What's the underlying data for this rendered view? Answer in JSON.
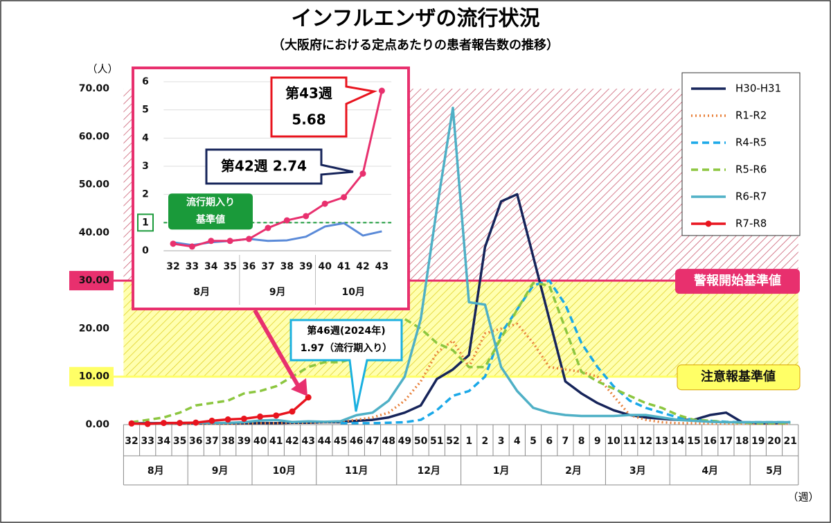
{
  "chart_data": [
    {
      "type": "line",
      "title": "インフルエンザの流行状況",
      "subtitle": "（大阪府における定点あたりの患者報告数の推移）",
      "y_unit": "（人）",
      "x_unit": "（週）",
      "categories": [
        "32",
        "33",
        "34",
        "35",
        "36",
        "37",
        "38",
        "39",
        "40",
        "41",
        "42",
        "43",
        "44",
        "45",
        "46",
        "47",
        "48",
        "49",
        "50",
        "51",
        "52",
        "1",
        "2",
        "3",
        "4",
        "5",
        "6",
        "7",
        "8",
        "9",
        "10",
        "11",
        "12",
        "13",
        "14",
        "15",
        "16",
        "17",
        "18",
        "19",
        "20",
        "21"
      ],
      "months": [
        {
          "label": "8月",
          "span": 4
        },
        {
          "label": "9月",
          "span": 4
        },
        {
          "label": "10月",
          "span": 4
        },
        {
          "label": "11月",
          "span": 5
        },
        {
          "label": "12月",
          "span": 4
        },
        {
          "label": "1月",
          "span": 5
        },
        {
          "label": "2月",
          "span": 4
        },
        {
          "label": "3月",
          "span": 4
        },
        {
          "label": "4月",
          "span": 5
        },
        {
          "label": "5月",
          "span": 3
        }
      ],
      "ylim": [
        0,
        70
      ],
      "yticks": [
        {
          "value": 0,
          "label": "0.00"
        },
        {
          "value": 10,
          "label": "10.00"
        },
        {
          "value": 20,
          "label": "20.00"
        },
        {
          "value": 30,
          "label": "30.00"
        },
        {
          "value": 40,
          "label": "40.00"
        },
        {
          "value": 50,
          "label": "50.00"
        },
        {
          "value": 60,
          "label": "60.00"
        },
        {
          "value": 70,
          "label": "70.00"
        }
      ],
      "thresholds": [
        {
          "label": "警報開始基準値",
          "value": 30,
          "color": "#e8306e"
        },
        {
          "label": "注意報基準値",
          "value": 10,
          "color": "#ffff66"
        }
      ],
      "legend": "upper right",
      "series": [
        {
          "name": "H30-H31",
          "color": "#16245a",
          "style": "solid",
          "values": [
            0.3,
            0.3,
            0.3,
            0.3,
            0.3,
            0.3,
            0.3,
            0.3,
            0.3,
            0.3,
            0.4,
            0.4,
            0.5,
            0.5,
            0.8,
            1.0,
            1.5,
            2.5,
            4.0,
            9.5,
            11.5,
            14.5,
            37,
            46.5,
            48,
            35,
            22,
            9,
            6.5,
            4.5,
            3,
            2,
            1.5,
            1.2,
            1,
            1,
            2,
            2.5,
            0.5,
            0.3,
            0.3,
            0.5
          ]
        },
        {
          "name": "R1-R2",
          "color": "#e8803a",
          "style": "dotted",
          "values": [
            0.2,
            0.2,
            0.2,
            0.2,
            0.2,
            0.2,
            0.2,
            0.3,
            0.3,
            0.3,
            0.4,
            0.4,
            0.5,
            0.6,
            1.0,
            1.5,
            2.5,
            5,
            9,
            15,
            17.5,
            12,
            19,
            20,
            21,
            17,
            12,
            11.5,
            11,
            10,
            6,
            2,
            1,
            0.5,
            0.3,
            0.3,
            0.2,
            0.2,
            0.2,
            0.2,
            0.2,
            0.2
          ]
        },
        {
          "name": "R4-R5",
          "color": "#1aa8e8",
          "style": "dashed",
          "values": [
            null,
            null,
            null,
            null,
            null,
            null,
            null,
            null,
            null,
            null,
            null,
            null,
            null,
            0.3,
            0.3,
            0.3,
            0.4,
            0.5,
            1.0,
            3,
            6,
            7,
            10,
            19,
            24,
            29,
            30,
            25,
            17,
            12,
            8,
            5,
            3.5,
            2.5,
            1.5,
            1,
            0.8,
            0.6,
            0.5,
            0.5,
            0.5,
            0.5
          ]
        },
        {
          "name": "R5-R6",
          "color": "#8cc63f",
          "style": "dashed",
          "values": [
            0.5,
            1,
            1.5,
            2.5,
            4,
            4.5,
            5,
            6.5,
            7,
            8,
            10,
            12,
            13,
            13,
            14,
            17,
            20,
            22,
            20,
            17,
            15.5,
            12,
            12,
            18,
            24,
            29.5,
            29,
            20,
            11,
            9,
            7.5,
            6,
            4.5,
            3.5,
            2,
            1,
            0.8,
            0.5,
            0.4,
            0.3,
            0.3,
            0.3
          ]
        },
        {
          "name": "R6-R7",
          "color": "#4fb0c6",
          "style": "solid",
          "values": [
            0.3,
            0.2,
            0.3,
            0.35,
            0.42,
            0.35,
            0.37,
            0.5,
            0.86,
            0.98,
            0.54,
            0.69,
            0.6,
            0.7,
            1.97,
            2.5,
            5,
            10,
            22,
            45,
            66,
            25.5,
            25,
            12,
            7,
            3.5,
            2.5,
            2,
            1.8,
            1.8,
            1.8,
            2,
            2,
            1.5,
            1,
            0.8,
            0.6,
            0.5,
            0.5,
            0.5,
            0.5,
            0.5
          ]
        },
        {
          "name": "R7-R8",
          "color": "#e8141e",
          "style": "solid",
          "markers": true,
          "values": [
            0.25,
            0.15,
            0.35,
            0.35,
            0.42,
            0.81,
            1.08,
            1.23,
            1.67,
            1.9,
            2.74,
            5.68,
            null,
            null,
            null,
            null,
            null,
            null,
            null,
            null,
            null,
            null,
            null,
            null,
            null,
            null,
            null,
            null,
            null,
            null,
            null,
            null,
            null,
            null,
            null,
            null,
            null,
            null,
            null,
            null,
            null,
            null
          ]
        }
      ],
      "callouts": [
        {
          "lines": [
            "第46週(2024年)",
            "1.97（流行期入り）"
          ]
        }
      ]
    },
    {
      "type": "line",
      "categories": [
        "32",
        "33",
        "34",
        "35",
        "36",
        "37",
        "38",
        "39",
        "40",
        "41",
        "42",
        "43"
      ],
      "months": [
        {
          "label": "8月",
          "span": 4
        },
        {
          "label": "9月",
          "span": 4
        },
        {
          "label": "10月",
          "span": 4
        }
      ],
      "ylim": [
        0,
        6
      ],
      "yticks": [
        0,
        1,
        2,
        3,
        4,
        5,
        6
      ],
      "grid": true,
      "threshold": {
        "value": 1,
        "lines": [
          "流行期入り",
          "基準値"
        ],
        "color": "#1a9a3a"
      },
      "series": [
        {
          "color": "#5a8ad8",
          "style": "solid",
          "values": [
            0.3,
            0.2,
            0.3,
            0.35,
            0.42,
            0.35,
            0.37,
            0.5,
            0.86,
            0.98,
            0.54,
            0.69
          ]
        },
        {
          "color": "#e8306e",
          "style": "solid",
          "markers": true,
          "values": [
            0.25,
            0.15,
            0.35,
            0.35,
            0.42,
            0.81,
            1.08,
            1.23,
            1.67,
            1.9,
            2.74,
            5.68
          ]
        }
      ],
      "callouts": [
        {
          "lines": [
            "第43週",
            "5.68"
          ]
        },
        {
          "lines": [
            "第42週 2.74"
          ]
        }
      ]
    }
  ]
}
